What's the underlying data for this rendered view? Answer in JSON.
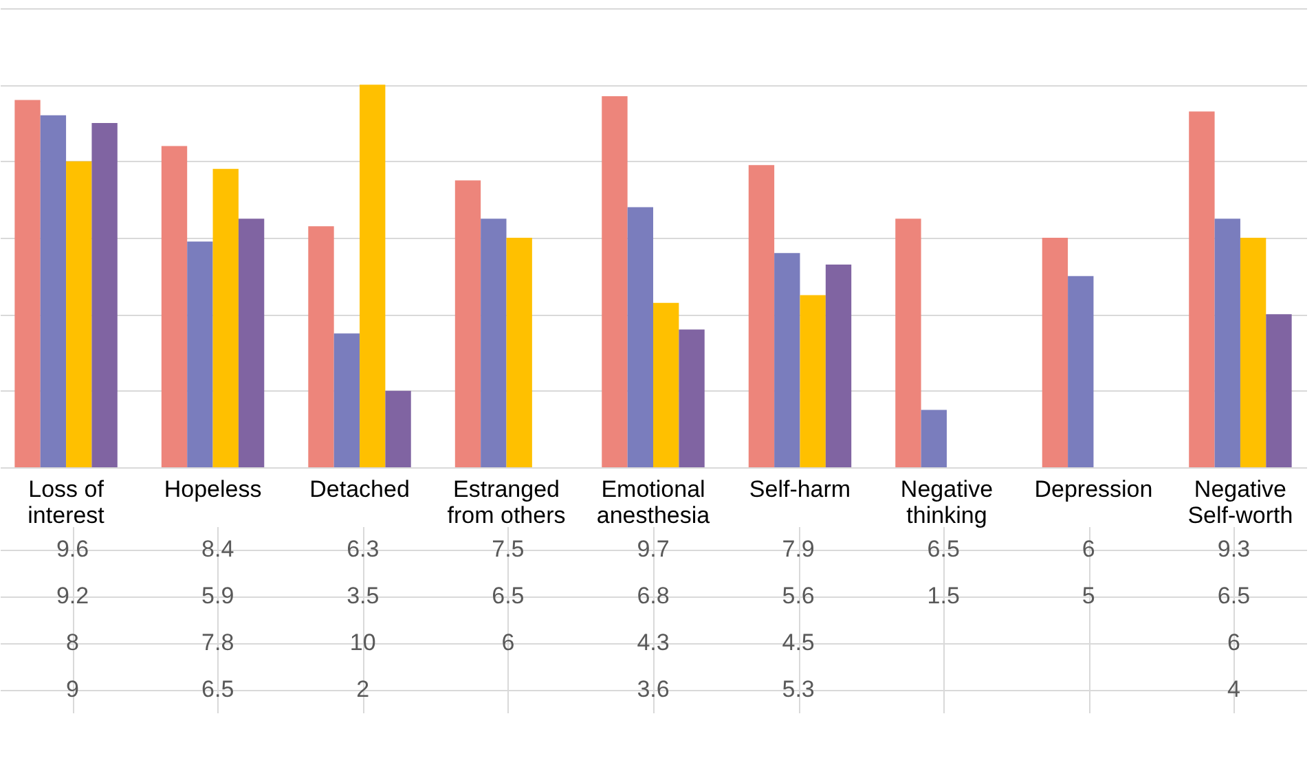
{
  "chart_data": {
    "type": "bar",
    "categories": [
      "Loss of interest",
      "Hopeless",
      "Detached",
      "Estranged from others",
      "Emotional anesthesia",
      "Self-harm",
      "Negative thinking",
      "Depression",
      "Negative Self-worth"
    ],
    "series": [
      {
        "color": "#ed857b",
        "values": [
          9.6,
          8.4,
          6.3,
          7.5,
          9.7,
          7.9,
          6.5,
          6,
          9.3
        ]
      },
      {
        "color": "#7a7dbd",
        "values": [
          9.2,
          5.9,
          3.5,
          6.5,
          6.8,
          5.6,
          1.5,
          5,
          6.5
        ]
      },
      {
        "color": "#ffc000",
        "values": [
          8,
          7.8,
          10,
          6,
          4.3,
          4.5,
          null,
          null,
          6
        ]
      },
      {
        "color": "#8064a2",
        "values": [
          9,
          6.5,
          2,
          null,
          3.6,
          5.3,
          null,
          null,
          4
        ]
      }
    ],
    "ylim": [
      0,
      12
    ],
    "yticks": [
      {
        "value": 0,
        "label": null
      },
      {
        "value": 2,
        "label": null
      },
      {
        "value": 4,
        "label": null
      },
      {
        "value": 6,
        "label": null
      },
      {
        "value": 8,
        "label": null
      },
      {
        "value": 10,
        "label": null
      },
      {
        "value": 12,
        "label": null
      }
    ],
    "grid": "y",
    "legend": false,
    "data_labels": true,
    "tick_labels": "x"
  }
}
